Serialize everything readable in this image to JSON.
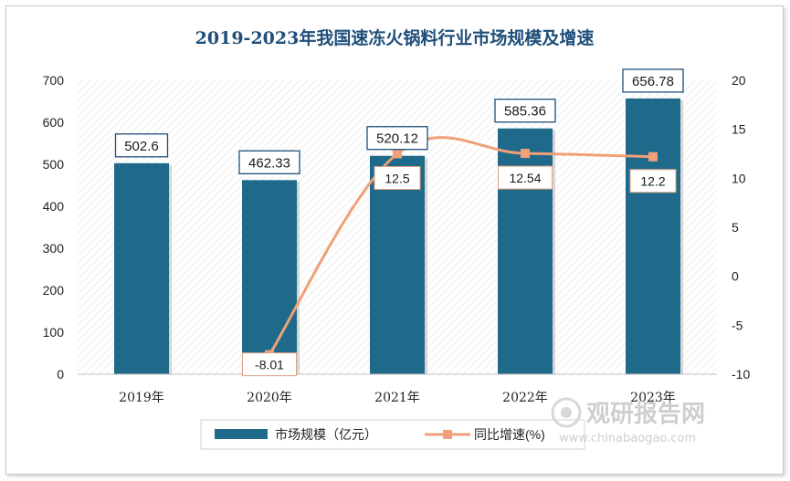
{
  "chart_data": {
    "type": "bar",
    "title": "2019-2023年我国速冻火锅料行业市场规模及增速",
    "categories": [
      "2019年",
      "2020年",
      "2021年",
      "2022年",
      "2023年"
    ],
    "series": [
      {
        "name": "市场规模（亿元）",
        "type": "bar",
        "axis": "left",
        "values": [
          502.6,
          462.33,
          520.12,
          585.36,
          656.78
        ],
        "labels": [
          "502.6",
          "462.33",
          "520.12",
          "585.36",
          "656.78"
        ],
        "color": "#1f6a8a"
      },
      {
        "name": "同比增速(%)",
        "type": "line",
        "axis": "right",
        "values": [
          null,
          -8.01,
          12.5,
          12.54,
          12.2
        ],
        "labels": [
          "",
          "-8.01",
          "12.5",
          "12.54",
          "12.2"
        ],
        "color": "#f0a078"
      }
    ],
    "ylim_left": [
      0,
      700
    ],
    "yticks_left": [
      "0",
      "100",
      "200",
      "300",
      "400",
      "500",
      "600",
      "700"
    ],
    "ylim_right": [
      -10,
      20
    ],
    "yticks_right": [
      "-10",
      "-5",
      "0",
      "5",
      "10",
      "15",
      "20"
    ],
    "xlabel": "",
    "ylabel": "",
    "legend_position": "bottom"
  },
  "watermark": {
    "brand": "观研报告网",
    "url": "www.chinabaogao.com"
  }
}
